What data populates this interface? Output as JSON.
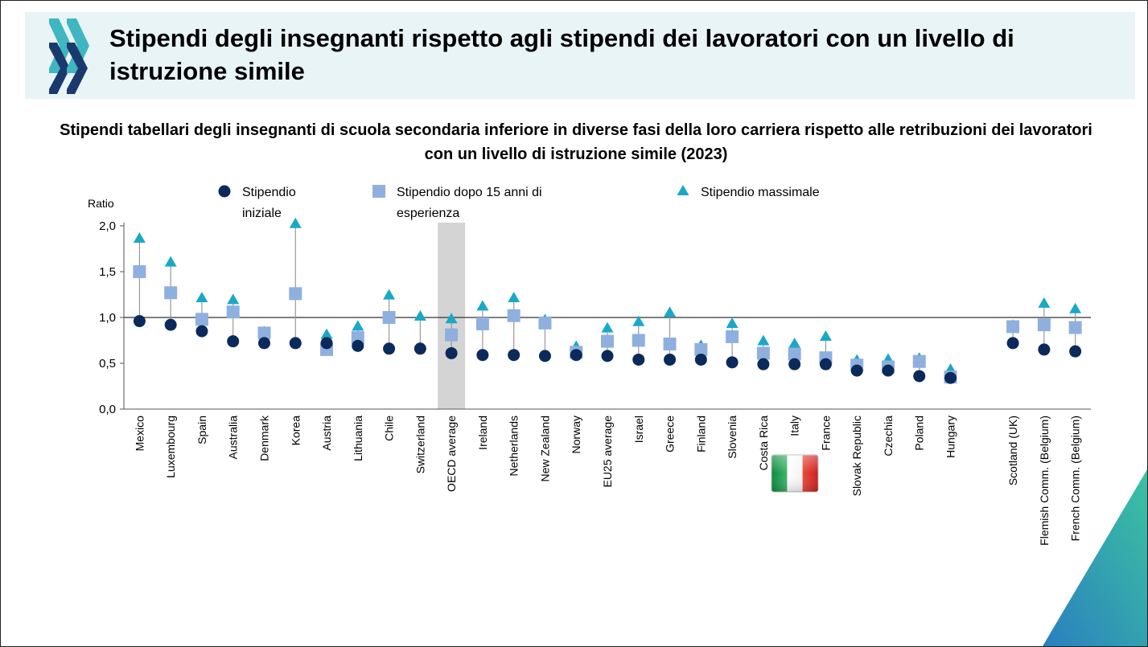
{
  "header": {
    "title": "Stipendi degli insegnanti rispetto agli stipendi dei lavoratori con un livello di istruzione simile"
  },
  "colors": {
    "banner_bg": "#e8f4f6",
    "initial": "#0b2a5b",
    "fifteen": "#8fb0df",
    "max": "#1aa8c8",
    "highlight": "#d4d4d4",
    "logo": "#1a3a6e",
    "logo_accent": "#3fb6c0"
  },
  "icons": {
    "logo": "oecd-chevron-logo",
    "flag": "italy-flag-icon"
  },
  "chart_data": {
    "type": "scatter",
    "title": "Stipendi tabellari degli insegnanti di scuola secondaria inferiore in diverse fasi della loro carriera rispetto alle retribuzioni dei lavoratori con un livello di istruzione simile (2023)",
    "ylabel": "Ratio",
    "ylim": [
      0,
      2
    ],
    "yticks": [
      "0,0",
      "0,5",
      "1,0",
      "1,5",
      "2,0"
    ],
    "reference_line": 1.0,
    "highlighted_category": "OECD average",
    "flagged_category": "Italy",
    "legend_position": "top",
    "categories": [
      "Mexico",
      "Luxembourg",
      "Spain",
      "Australia",
      "Denmark",
      "Korea",
      "Austria",
      "Lithuania",
      "Chile",
      "Switzerland",
      "OECD average",
      "Ireland",
      "Netherlands",
      "New Zealand",
      "Norway",
      "EU25 average",
      "Israel",
      "Greece",
      "Finland",
      "Slovenia",
      "Costa Rica",
      "Italy",
      "France",
      "Slovak Republic",
      "Czechia",
      "Poland",
      "Hungary",
      "",
      "Scotland (UK)",
      "Flemish Comm. (Belgium)",
      "French Comm. (Belgium)"
    ],
    "series": [
      {
        "name": "Stipendio iniziale",
        "legend_lines": [
          "Stipendio",
          "iniziale"
        ],
        "marker": "circle",
        "values": [
          0.96,
          0.92,
          0.85,
          0.74,
          0.72,
          0.72,
          0.72,
          0.69,
          0.66,
          0.66,
          0.61,
          0.59,
          0.59,
          0.58,
          0.59,
          0.58,
          0.54,
          0.54,
          0.54,
          0.51,
          0.49,
          0.49,
          0.49,
          0.42,
          0.42,
          0.36,
          0.34,
          null,
          0.72,
          0.65,
          0.63
        ]
      },
      {
        "name": "Stipendio dopo 15 anni di esperienza",
        "legend_lines": [
          "Stipendio dopo 15 anni di",
          "esperienza"
        ],
        "marker": "square",
        "values": [
          1.5,
          1.27,
          0.98,
          1.06,
          0.83,
          1.26,
          0.65,
          0.78,
          1.0,
          null,
          0.81,
          0.93,
          1.02,
          0.94,
          0.62,
          0.74,
          0.75,
          0.71,
          0.65,
          0.79,
          0.61,
          0.6,
          0.56,
          0.48,
          0.46,
          0.52,
          0.35,
          null,
          0.9,
          0.92,
          0.89
        ]
      },
      {
        "name": "Stipendio massimale",
        "legend_lines": [
          "Stipendio massimale"
        ],
        "marker": "triangle",
        "values": [
          1.86,
          1.6,
          1.21,
          1.19,
          0.84,
          2.02,
          0.81,
          0.9,
          1.24,
          1.01,
          0.98,
          1.12,
          1.21,
          0.97,
          0.68,
          0.88,
          0.95,
          1.05,
          0.69,
          0.93,
          0.74,
          0.71,
          0.79,
          0.53,
          0.54,
          0.55,
          0.43,
          null,
          0.91,
          1.15,
          1.09
        ]
      }
    ]
  }
}
